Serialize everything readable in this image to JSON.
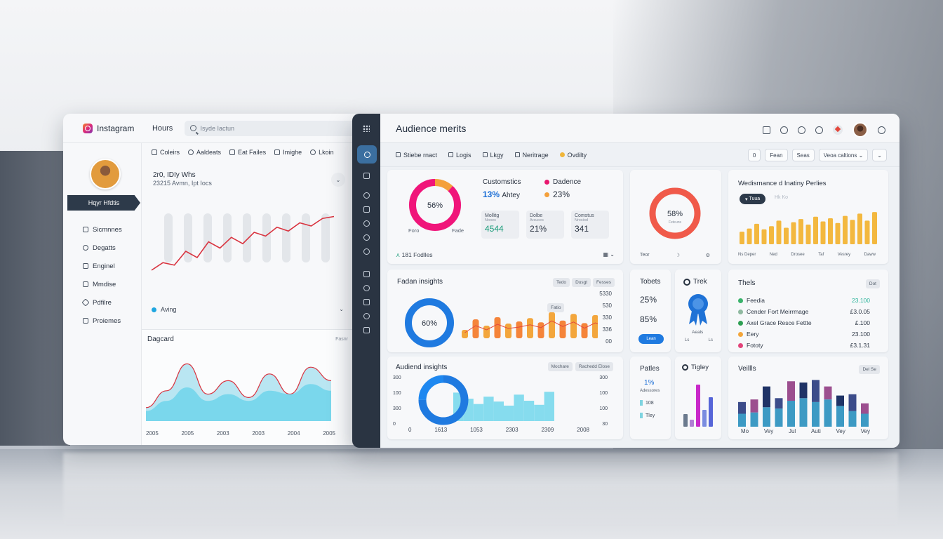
{
  "colors": {
    "accent_blue": "#1f7ae0",
    "pink": "#f0157a",
    "coral": "#f05a4a",
    "orange": "#f4a03a",
    "gold": "#f3b83f",
    "cyan": "#7fd8ea",
    "navy": "#2a3442"
  },
  "left_panel": {
    "brand": "Instagram",
    "nav_hours": "Hours",
    "search_placeholder": "Isyde Iactun",
    "user_tag": "Hqyr Hfdtis",
    "menu": [
      {
        "label": "Sicmnnes",
        "icon": "grid-icon"
      },
      {
        "label": "Degatts",
        "icon": "search-icon"
      },
      {
        "label": "Enginel",
        "icon": "bookmark-icon"
      },
      {
        "label": "Mmdise",
        "icon": "inbox-icon"
      },
      {
        "label": "Pdfilre",
        "icon": "pencil-icon"
      },
      {
        "label": "Proiemes",
        "icon": "image-icon"
      }
    ],
    "tabs": [
      "Coleirs",
      "Aaldeats",
      "Eat Failes",
      "Imighe",
      "Lkoin"
    ],
    "stat_line1": "2r0, IDIy Whs",
    "stat_line2": "23215 Avmn, Ipt Iocs",
    "legend_label": "Aving",
    "card2_title": "Dagcard",
    "card2_tag": "Fasnr",
    "line_chart": {
      "values": [
        10,
        22,
        18,
        40,
        30,
        55,
        45,
        62,
        52,
        70,
        64,
        78,
        72,
        85,
        80,
        92,
        95
      ]
    },
    "area_chart": {
      "x": [
        "2005",
        "2005",
        "2003",
        "2003",
        "2004",
        "2005"
      ],
      "series_outer": [
        20,
        45,
        85,
        40,
        60,
        35,
        70,
        40,
        80,
        60
      ],
      "series_inner": [
        15,
        30,
        50,
        30,
        40,
        30,
        45,
        40,
        55,
        45
      ]
    }
  },
  "main": {
    "title": "Audience merits",
    "subtabs": [
      "Stiebe rnact",
      "Logis",
      "Lkgy",
      "Neritrage",
      "Ovdilty"
    ],
    "controls": [
      "0",
      "Fean",
      "Seas",
      "Veoa caltions"
    ],
    "card_a": {
      "donut_label": "56%",
      "donut_left": "Foro",
      "donut_right": "Fade",
      "title": "Customstics",
      "legend_pink": "Dadence",
      "v1": "13%",
      "v1_suffix": "Ahtey",
      "v2": "23%",
      "boxes": [
        {
          "label": "Mollitg",
          "sub": "Nooes",
          "value": "4544"
        },
        {
          "label": "Dolbe",
          "sub": "Arsuces",
          "value": "21%"
        },
        {
          "label": "Comstus",
          "sub": "Nrosiod",
          "value": "341"
        }
      ],
      "footer": "181 Fodlles"
    },
    "card_b": {
      "donut_label": "58%",
      "donut_sub": "Feteuns",
      "foot_left": "Teor"
    },
    "card_c": {
      "title": "Wedisrnance d Inatiny Perlies",
      "pill_a": "Tuua",
      "pill_b": "Hk Ko",
      "bars": [
        32,
        40,
        52,
        38,
        46,
        60,
        42,
        56,
        64,
        50,
        70,
        58,
        66,
        54,
        72,
        62,
        78,
        60,
        82
      ],
      "labels": [
        "Ns Deper",
        "Ned",
        "Drosee",
        "Taf",
        "Vesrey",
        "Daww"
      ]
    },
    "card_d": {
      "title": "Fadan insights",
      "pills": [
        "Tedo",
        "Dusgt",
        "Fesses"
      ],
      "donut_label": "60%",
      "tooltip": "Fatio",
      "bars": [
        20,
        45,
        30,
        50,
        35,
        40,
        48,
        38,
        62,
        42,
        58,
        36,
        55,
        40,
        50
      ],
      "axis": [
        "5330",
        "530",
        "330",
        "336",
        "00"
      ]
    },
    "card_e": {
      "title": "Tobets",
      "v1": "25%",
      "v2": "85%",
      "button": "Lean"
    },
    "card_f": {
      "title": "Trek",
      "label": "Aeals",
      "foot": [
        "Ls",
        "Ls"
      ]
    },
    "card_g": {
      "title": "Thels",
      "pill": "Dot",
      "rows": [
        {
          "name": "Feedia",
          "value": "23.100",
          "color": "#3ab26b",
          "value_color": "#2bb39a"
        },
        {
          "name": "Cender Fort Meirrmage",
          "value": "£3.0.05",
          "color": "#8fb9a0",
          "value_color": "#2e3846"
        },
        {
          "name": "Axel Grace Resce Fettte",
          "value": "£.100",
          "color": "#2e9f53",
          "value_color": "#2e3846"
        },
        {
          "name": "Eery",
          "value": "23.100",
          "color": "#f3a53a",
          "value_color": "#2e3846"
        },
        {
          "name": "Fototy",
          "value": "£3.1.31",
          "color": "#e2447a",
          "value_color": "#2e3846"
        }
      ]
    },
    "card_h": {
      "title": "Audiend insights",
      "pills": [
        "Mochare",
        "Rachedd Elose"
      ],
      "donut_value": 75,
      "left_axis": [
        "300",
        "100",
        "300",
        "0"
      ],
      "right_axis": [
        "300",
        "100",
        "100",
        "30"
      ],
      "x": [
        "0",
        "1613",
        "1053",
        "2303",
        "2309",
        "2008"
      ],
      "bars": [
        70,
        55,
        42,
        60,
        48,
        38,
        65,
        50,
        40,
        72
      ]
    },
    "card_i": {
      "title": "Patles",
      "value": "1%",
      "sub": "Adessores",
      "r1": "108",
      "r2": "Tley"
    },
    "card_j": {
      "title": "Tigley",
      "bars": [
        18,
        10,
        60,
        24,
        42
      ]
    },
    "card_k": {
      "title": "Veillls",
      "pill": "Del Se",
      "x": [
        "Mo",
        "Vey",
        "Jul",
        "Auti",
        "Vey",
        "Vey"
      ],
      "bars": [
        {
          "a": 20,
          "b": 18
        },
        {
          "a": 22,
          "b": 20
        },
        {
          "a": 30,
          "b": 32
        },
        {
          "a": 28,
          "b": 16
        },
        {
          "a": 40,
          "b": 30
        },
        {
          "a": 44,
          "b": 24
        },
        {
          "a": 38,
          "b": 34
        },
        {
          "a": 42,
          "b": 20
        },
        {
          "a": 32,
          "b": 16
        },
        {
          "a": 24,
          "b": 26
        },
        {
          "a": 20,
          "b": 16
        }
      ]
    }
  }
}
